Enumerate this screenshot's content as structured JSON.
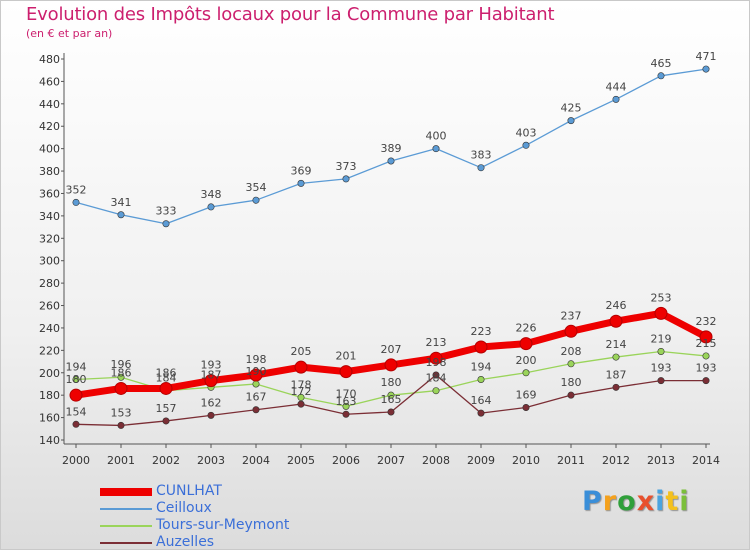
{
  "title": "Evolution des Impôts locaux pour la Commune par Habitant",
  "subtitle": "(en € et par an)",
  "logo": {
    "text": "Proxiti",
    "colors": [
      "#3a8ed8",
      "#f4a11d",
      "#2f9f3a",
      "#e8502d",
      "#4aa3df",
      "#f4c11d",
      "#7bbf3a"
    ]
  },
  "chart_data": {
    "type": "line",
    "x": [
      2000,
      2001,
      2002,
      2003,
      2004,
      2005,
      2006,
      2007,
      2008,
      2009,
      2010,
      2011,
      2012,
      2013,
      2014
    ],
    "ylim": [
      140,
      480
    ],
    "yticks": [
      140,
      160,
      180,
      200,
      220,
      240,
      260,
      280,
      300,
      320,
      340,
      360,
      380,
      400,
      420,
      440,
      460,
      480
    ],
    "grid": false,
    "legend_position": "bottom-left",
    "series": [
      {
        "name": "CUNLHAT",
        "color": "#ee0000",
        "values": [
          180,
          186,
          186,
          193,
          198,
          205,
          201,
          207,
          213,
          223,
          226,
          237,
          246,
          253,
          232
        ],
        "emphasis": true
      },
      {
        "name": "Ceilloux",
        "color": "#5b9bd5",
        "values": [
          352,
          341,
          333,
          348,
          354,
          369,
          373,
          389,
          400,
          383,
          403,
          425,
          444,
          465,
          471
        ]
      },
      {
        "name": "Tours-sur-Meymont",
        "color": "#9ad45a",
        "values": [
          194,
          196,
          184,
          187,
          190,
          178,
          170,
          180,
          184,
          194,
          200,
          208,
          214,
          219,
          215
        ]
      },
      {
        "name": "Auzelles",
        "color": "#7b2e35",
        "values": [
          154,
          153,
          157,
          162,
          167,
          172,
          163,
          165,
          198,
          164,
          169,
          180,
          187,
          193,
          193
        ]
      }
    ]
  }
}
